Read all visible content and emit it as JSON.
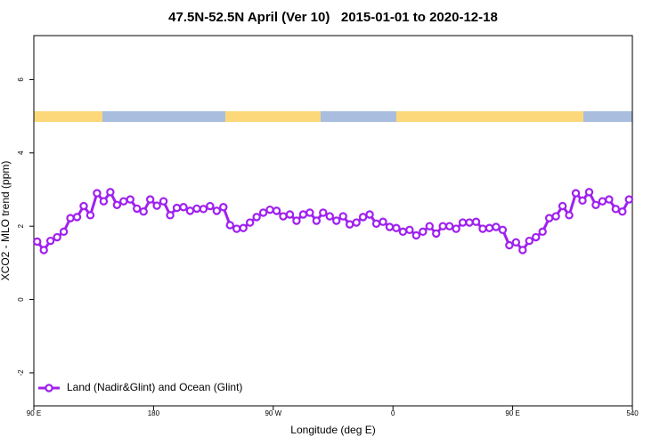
{
  "chart_data": {
    "type": "line",
    "title": "47.5N-52.5N April (Ver 10)   2015-01-01 to 2020-12-18",
    "x_label": "Longitude (deg E)",
    "y_label": "XCO2 - MLO trend (ppm)",
    "x": [
      92.5,
      97.5,
      102.5,
      107.5,
      112.5,
      117.5,
      122.5,
      127.5,
      132.5,
      137.5,
      142.5,
      147.5,
      152.5,
      157.5,
      162.5,
      167.5,
      172.5,
      177.5,
      182.5,
      187.5,
      192.5,
      197.5,
      202.5,
      207.5,
      212.5,
      217.5,
      222.5,
      227.5,
      232.5,
      237.5,
      242.5,
      247.5,
      252.5,
      257.5,
      262.5,
      267.5,
      272.5,
      277.5,
      282.5,
      287.5,
      292.5,
      297.5,
      302.5,
      307.5,
      312.5,
      317.5,
      322.5,
      327.5,
      332.5,
      337.5,
      342.5,
      347.5,
      352.5,
      357.5,
      362.5,
      367.5,
      372.5,
      377.5,
      382.5,
      387.5,
      392.5,
      397.5,
      402.5,
      407.5,
      412.5,
      417.5,
      422.5,
      427.5,
      432.5,
      437.5,
      442.5,
      447.5,
      452.5,
      457.5,
      462.5,
      467.5,
      472.5,
      477.5,
      482.5,
      487.5,
      492.5,
      497.5,
      502.5,
      507.5,
      512.5,
      517.5,
      522.5,
      527.5,
      532.5,
      537.5
    ],
    "series": [
      {
        "name": "Land (Nadir&Glint) and Ocean (Glint)",
        "color": "#a020f0",
        "values": [
          1.58,
          1.35,
          1.6,
          1.7,
          1.85,
          2.22,
          2.25,
          2.55,
          2.3,
          2.9,
          2.68,
          2.93,
          2.58,
          2.68,
          2.73,
          2.48,
          2.4,
          2.73,
          2.56,
          2.68,
          2.3,
          2.5,
          2.52,
          2.42,
          2.48,
          2.47,
          2.55,
          2.42,
          2.52,
          2.03,
          1.93,
          1.95,
          2.1,
          2.25,
          2.37,
          2.45,
          2.42,
          2.27,
          2.32,
          2.15,
          2.32,
          2.37,
          2.15,
          2.37,
          2.27,
          2.15,
          2.27,
          2.05,
          2.1,
          2.25,
          2.32,
          2.07,
          2.12,
          1.98,
          1.95,
          1.85,
          1.9,
          1.75,
          1.85,
          2.0,
          1.8,
          2.0,
          2.0,
          1.93,
          2.1,
          2.1,
          2.12,
          1.93,
          1.95,
          1.98,
          1.9,
          1.48,
          1.56,
          1.35,
          1.6,
          1.7,
          1.85,
          2.22,
          2.27,
          2.55,
          2.3,
          2.9,
          2.7,
          2.93,
          2.58,
          2.68,
          2.73,
          2.47,
          2.4,
          2.73
        ]
      }
    ],
    "xlim": [
      90,
      540
    ],
    "xticks": [
      {
        "value": 90,
        "label": "90 E"
      },
      180,
      {
        "value": 270,
        "label": "90 W"
      },
      {
        "value": 360,
        "label": "0"
      },
      {
        "value": 450,
        "label": "90 E"
      },
      540
    ],
    "ylim": [
      -2.9,
      7.2
    ],
    "yticks": [
      -2,
      0,
      2,
      4,
      6
    ],
    "legend": "bottom-left"
  }
}
